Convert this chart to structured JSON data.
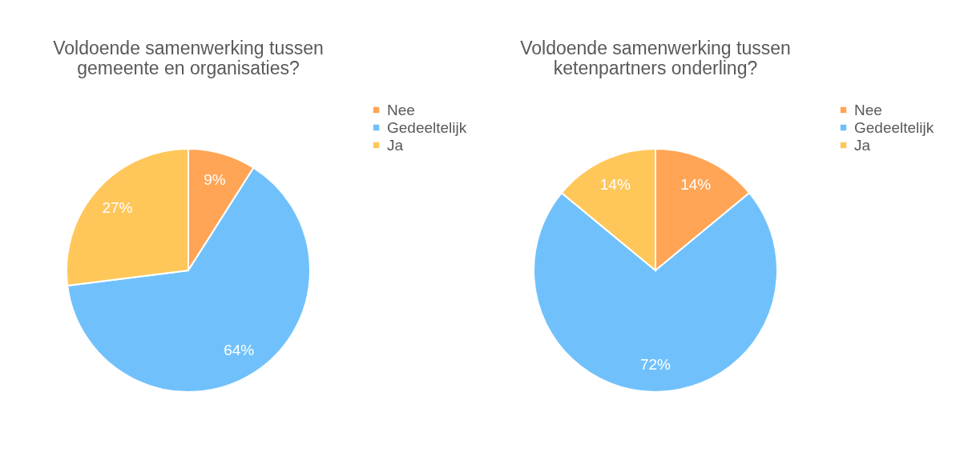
{
  "chart_data": [
    {
      "type": "pie",
      "title": "Voldoende samenwerking tussen gemeente en organisaties?",
      "categories": [
        "Nee",
        "Gedeeltelijk",
        "Ja"
      ],
      "values": [
        9,
        64,
        27
      ],
      "colors": [
        "#ffa555",
        "#70c1fb",
        "#ffc65a"
      ],
      "value_labels": [
        "9%",
        "64%",
        "27%"
      ],
      "legend": "right"
    },
    {
      "type": "pie",
      "title": "Voldoende samenwerking tussen ketenpartners onderling?",
      "categories": [
        "Nee",
        "Gedeeltelijk",
        "Ja"
      ],
      "values": [
        14,
        72,
        14
      ],
      "colors": [
        "#ffa555",
        "#70c1fb",
        "#ffc65a"
      ],
      "value_labels": [
        "14%",
        "72%",
        "14%"
      ],
      "legend": "right"
    }
  ]
}
